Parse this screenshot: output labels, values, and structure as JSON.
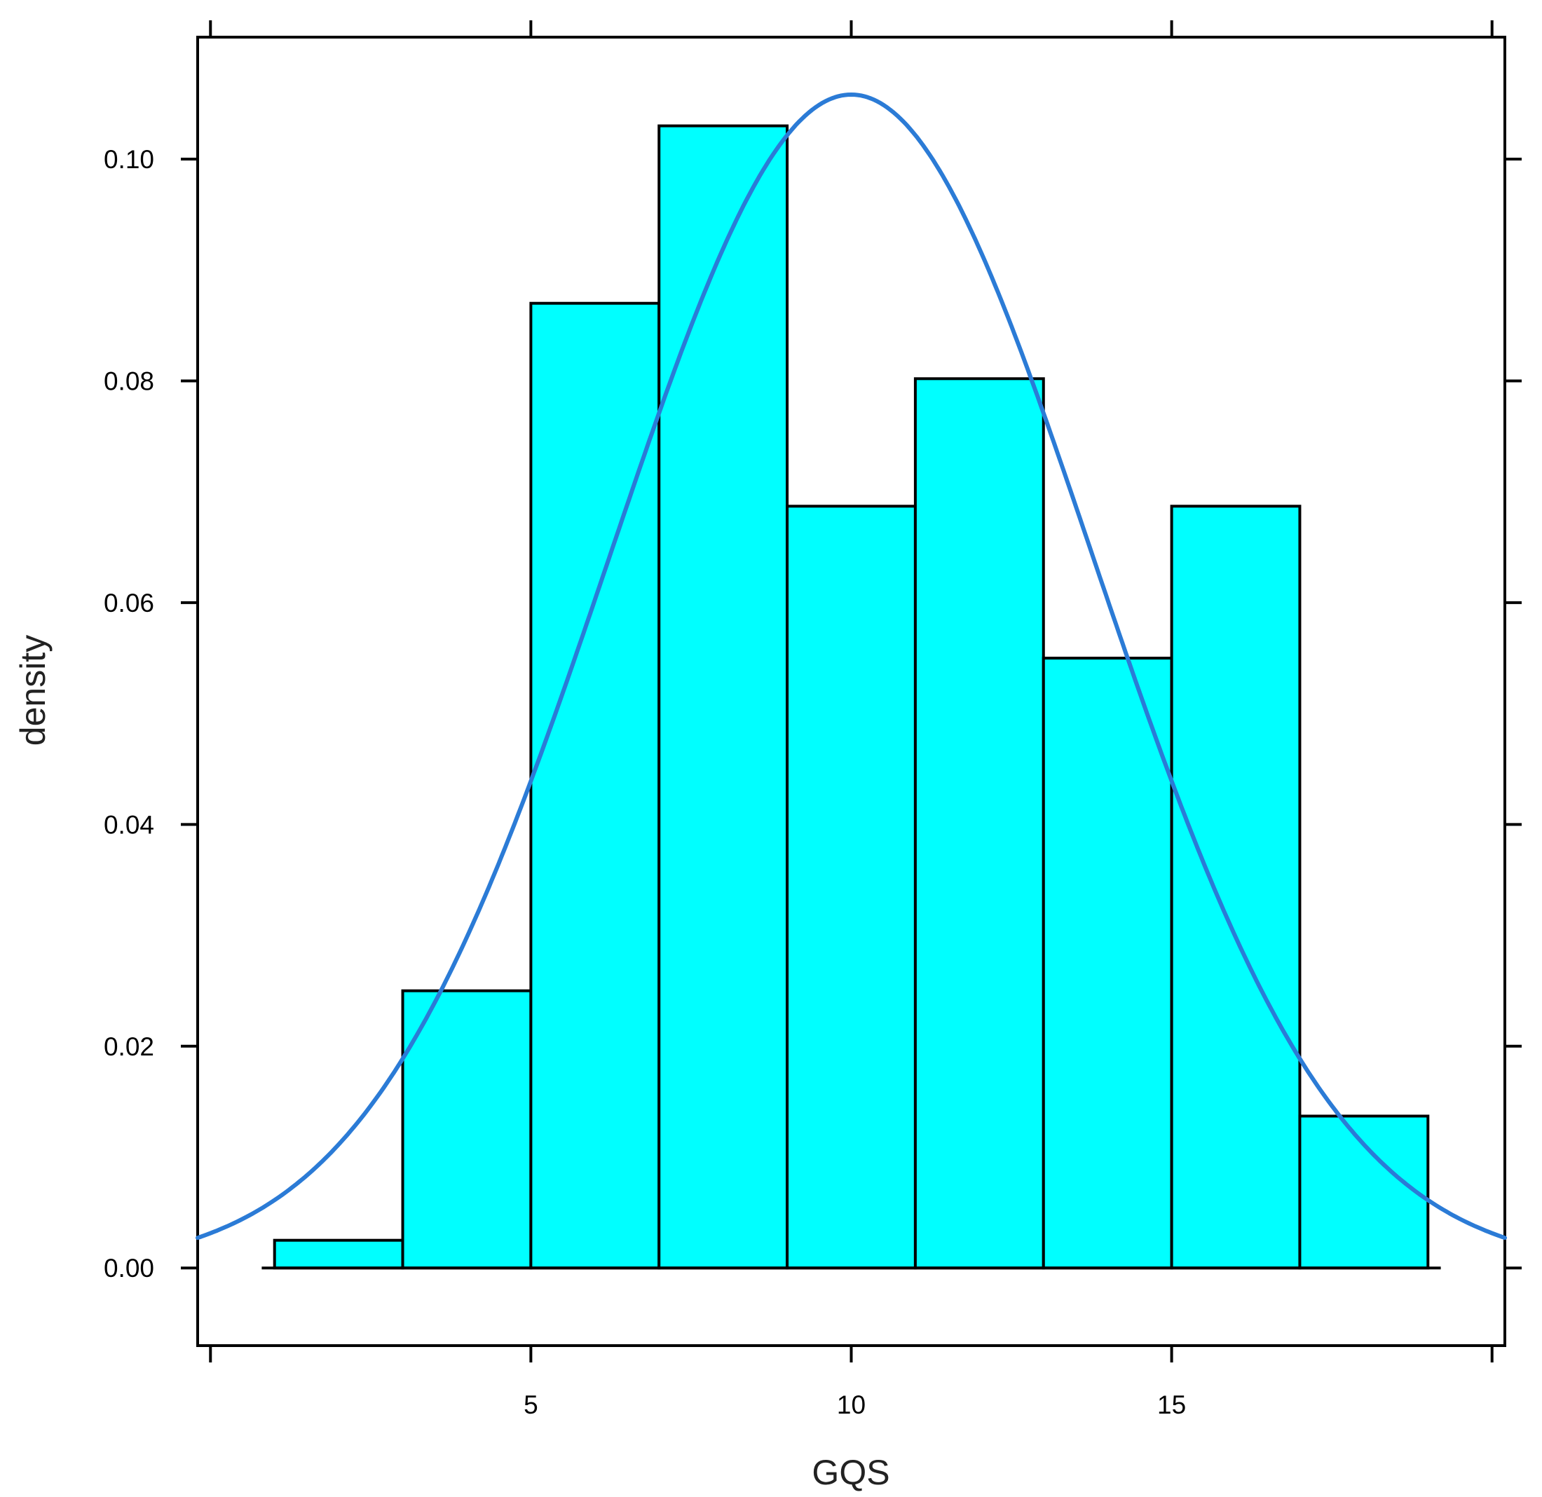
{
  "chart_data": {
    "type": "bar",
    "subtype": "histogram-with-density-curve",
    "xlabel": "GQS",
    "ylabel": "density",
    "xlim": [
      -0.2,
      20.2
    ],
    "ylim": [
      -0.007,
      0.111
    ],
    "x_ticks": [
      5,
      10,
      15
    ],
    "x_tick_labels": [
      "5",
      "10",
      "15"
    ],
    "x_ticks_unlabeled": [
      0,
      20
    ],
    "y_ticks": [
      0.0,
      0.02,
      0.04,
      0.06,
      0.08,
      0.1
    ],
    "y_tick_labels": [
      "0.00",
      "0.02",
      "0.04",
      "0.06",
      "0.08",
      "0.10"
    ],
    "grid": false,
    "bins": [
      {
        "x0": 1,
        "x1": 3,
        "density": 0.0025
      },
      {
        "x0": 3,
        "x1": 5,
        "density": 0.025
      },
      {
        "x0": 5,
        "x1": 7,
        "density": 0.087
      },
      {
        "x0": 7,
        "x1": 9,
        "density": 0.103
      },
      {
        "x0": 9,
        "x1": 11,
        "density": 0.0687
      },
      {
        "x0": 11,
        "x1": 13,
        "density": 0.0802
      },
      {
        "x0": 13,
        "x1": 15,
        "density": 0.055
      },
      {
        "x0": 15,
        "x1": 17,
        "density": 0.0687
      },
      {
        "x0": 17,
        "x1": 19,
        "density": 0.0137
      }
    ],
    "baseline": {
      "x0": 0.8,
      "x1": 19.2
    },
    "density_curve": {
      "distribution": "normal",
      "mean": 10.0,
      "sd": 3.77
    },
    "colors": {
      "bar_fill": "#00ffff",
      "bar_stroke": "#000000",
      "curve": "#2b7bd6"
    }
  }
}
